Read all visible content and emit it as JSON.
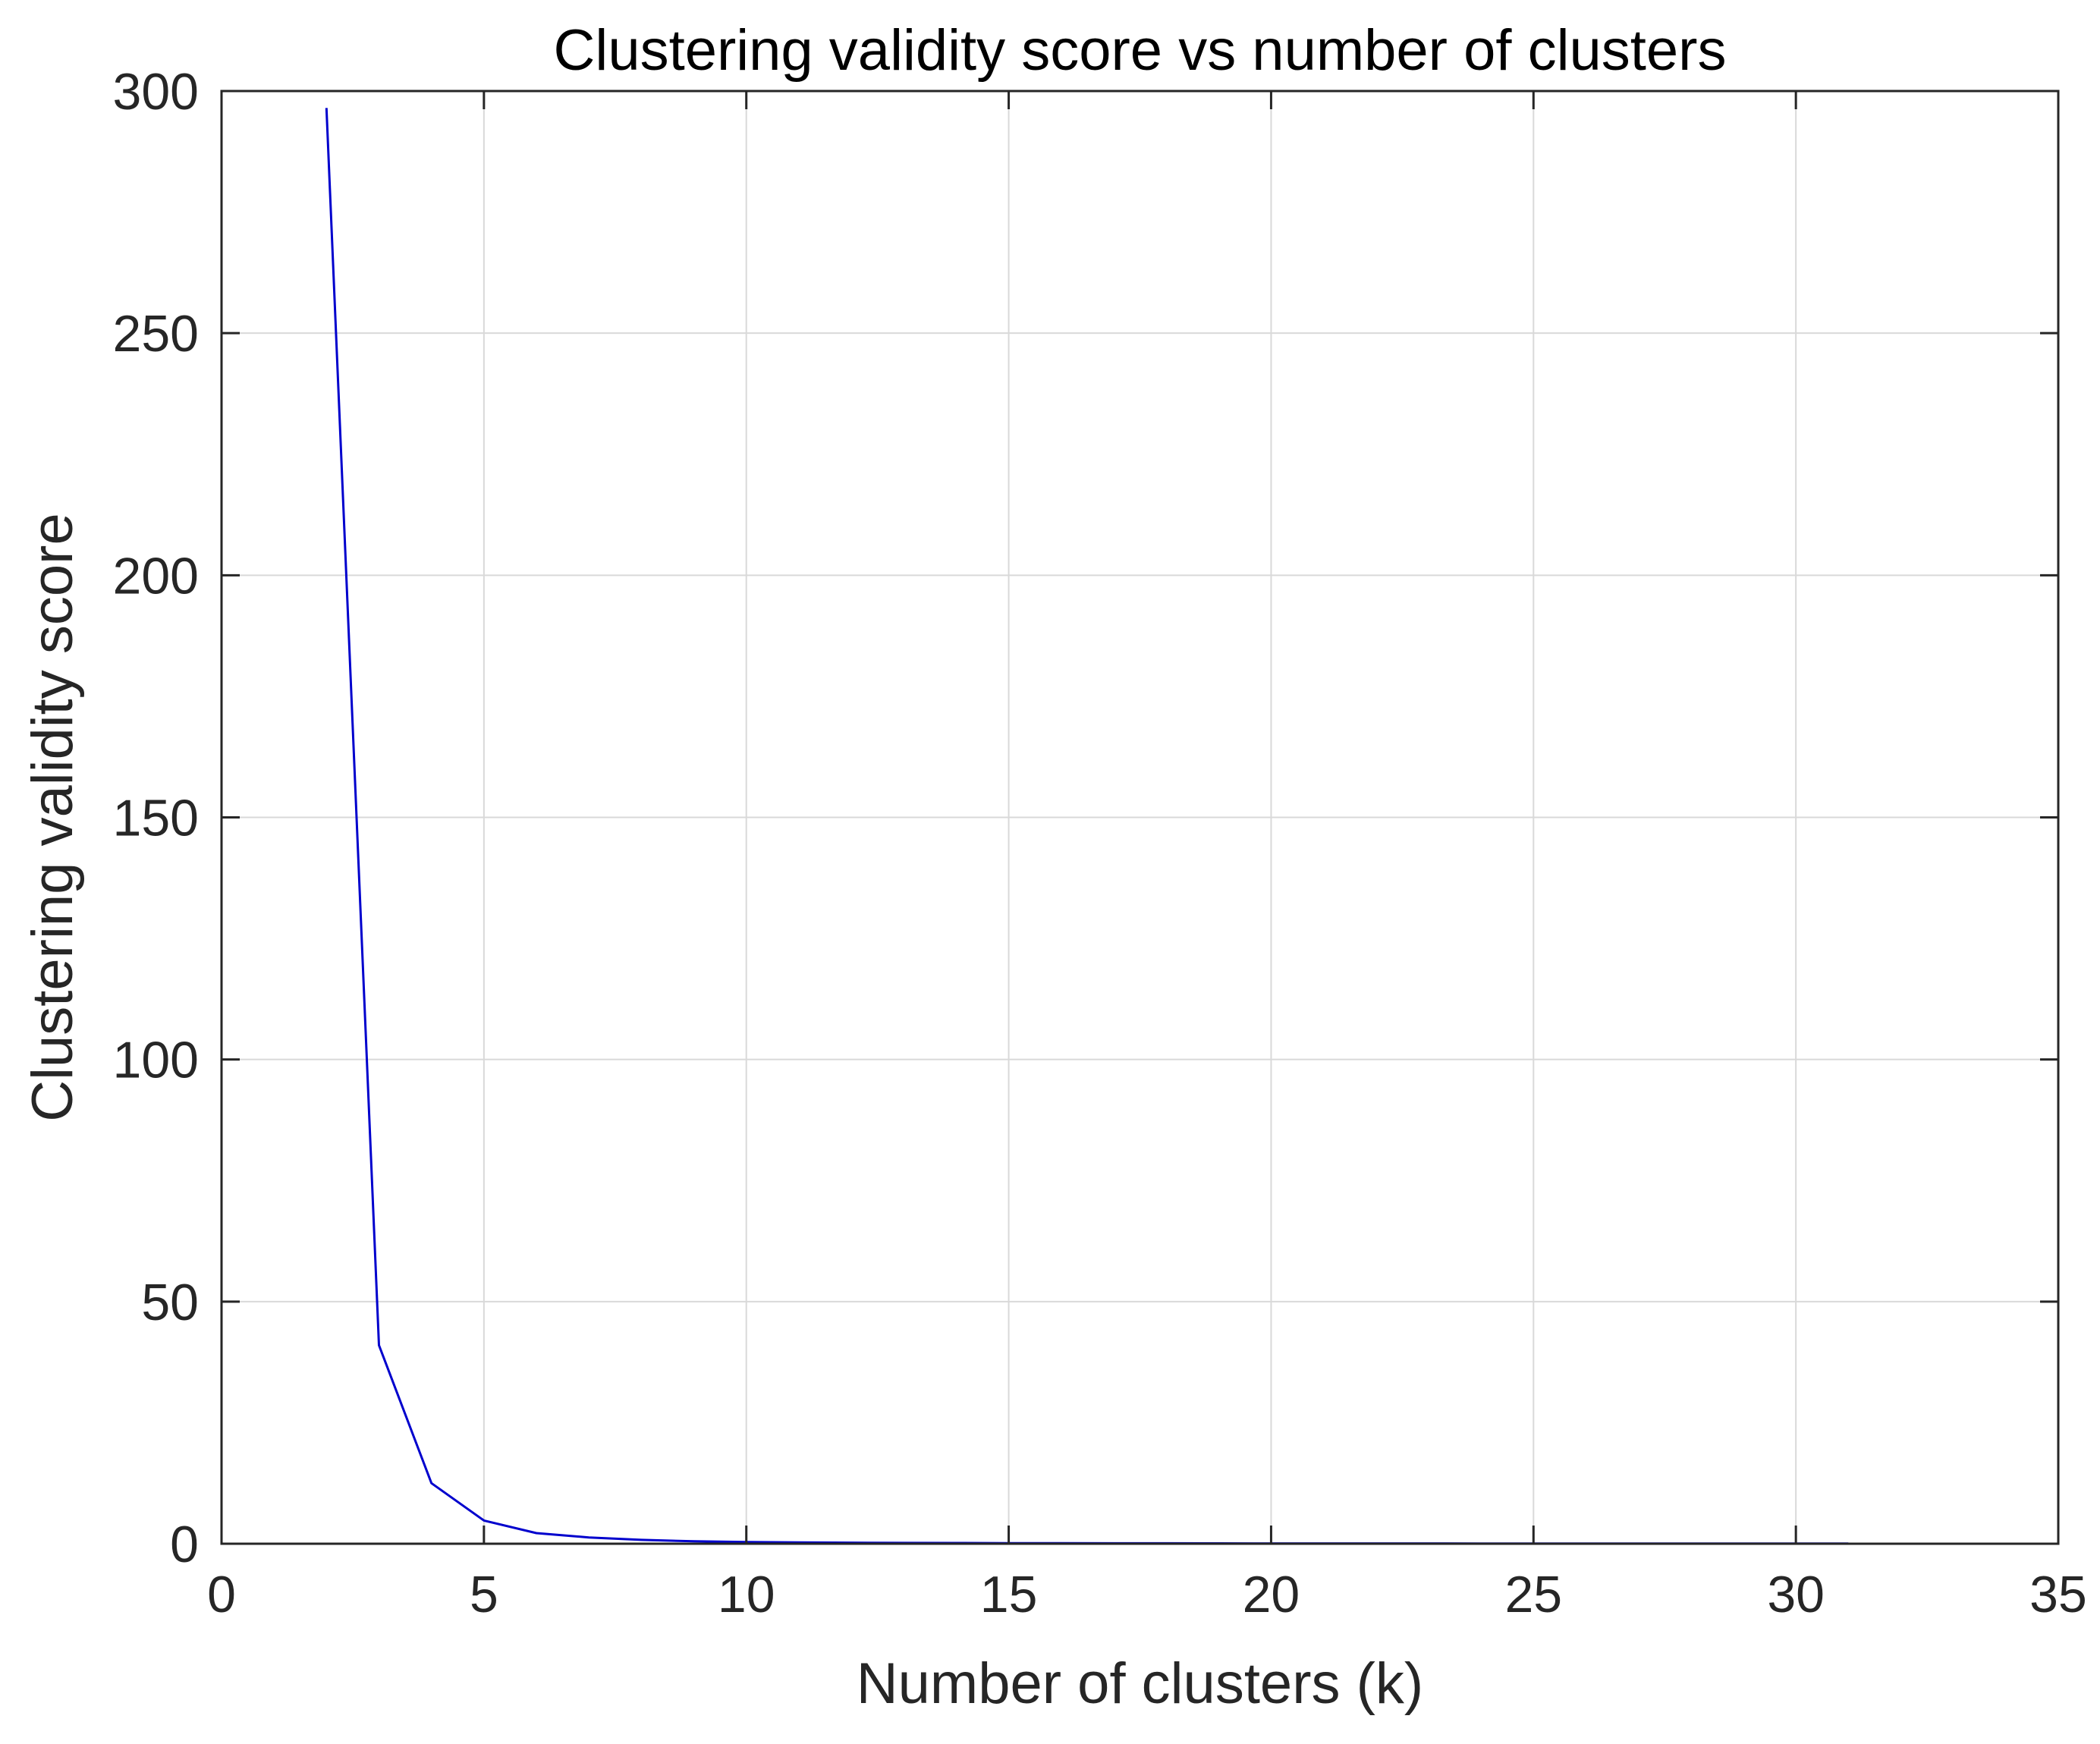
{
  "chart_data": {
    "type": "line",
    "title": "Clustering validity score vs number of clusters",
    "xlabel": "Number of clusters (k)",
    "ylabel": "Clustering validity score",
    "xlim": [
      0,
      35
    ],
    "ylim": [
      0,
      300
    ],
    "xticks": [
      0,
      5,
      10,
      15,
      20,
      25,
      30,
      35
    ],
    "yticks": [
      0,
      50,
      100,
      150,
      200,
      250,
      300
    ],
    "xtick_labels": [
      "0",
      "5",
      "10",
      "15",
      "20",
      "25",
      "30",
      "35"
    ],
    "ytick_labels": [
      "0",
      "50",
      "100",
      "150",
      "200",
      "250",
      "300"
    ],
    "grid": true,
    "series": [
      {
        "color": "#0000cd",
        "x": [
          2,
          3,
          4,
          5,
          6,
          7,
          8,
          9,
          10,
          11,
          12,
          13,
          14,
          15,
          16,
          17,
          18,
          19,
          20,
          21,
          22,
          23,
          24,
          25,
          26,
          27,
          28,
          29,
          30,
          31
        ],
        "y": [
          296.5,
          41,
          12.5,
          4.8,
          2.2,
          1.3,
          0.8,
          0.5,
          0.35,
          0.28,
          0.22,
          0.18,
          0.15,
          0.13,
          0.11,
          0.1,
          0.09,
          0.08,
          0.07,
          0.07,
          0.06,
          0.06,
          0.05,
          0.05,
          0.05,
          0.04,
          0.04,
          0.04,
          0.04,
          0.03
        ]
      }
    ]
  }
}
